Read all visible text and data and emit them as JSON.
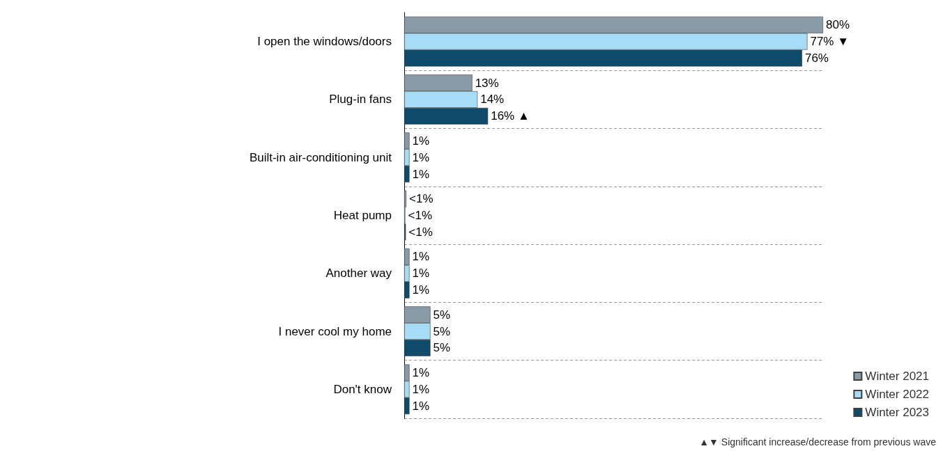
{
  "chart_data": {
    "type": "bar",
    "orientation": "horizontal",
    "categories": [
      "I open the windows/doors",
      "Plug-in fans",
      "Built-in air-conditioning unit",
      "Heat pump",
      "Another way",
      "I never cool my home",
      "Don't know"
    ],
    "series": [
      {
        "name": "Winter 2021",
        "color": "#8a9ba8",
        "values": [
          80,
          13,
          1,
          0.4,
          1,
          5,
          1
        ],
        "value_labels": [
          "80%",
          "13%",
          "1%",
          "<1%",
          "1%",
          "5%",
          "1%"
        ]
      },
      {
        "name": "Winter 2022",
        "color": "#a6dcf5",
        "values": [
          77,
          14,
          1,
          0.2,
          1,
          5,
          1
        ],
        "value_labels": [
          "77% ▼",
          "14%",
          "1%",
          "<1%",
          "1%",
          "5%",
          "1%"
        ]
      },
      {
        "name": "Winter 2023",
        "color": "#0e4a6a",
        "values": [
          76,
          16,
          1,
          0.3,
          1,
          5,
          1
        ],
        "value_labels": [
          "76%",
          "16% ▲",
          "1%",
          "<1%",
          "1%",
          "5%",
          "1%"
        ]
      }
    ],
    "annotations": [
      "▲▼ Significant increase/decrease from previous wave"
    ],
    "grid": "y",
    "legend": "bottom right"
  }
}
